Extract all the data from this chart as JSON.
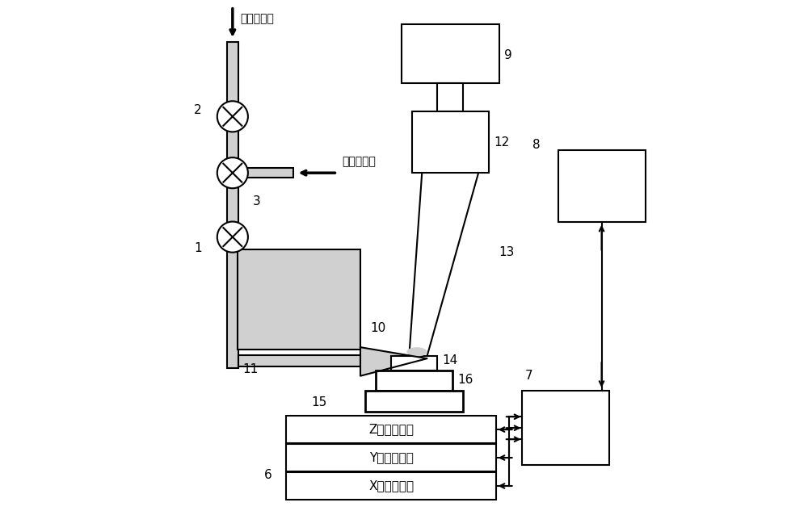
{
  "bg_color": "#ffffff",
  "line_color": "#000000",
  "fill_light": "#d0d0d0",
  "text_Z": "Z电控平移台",
  "text_Y": "Y电控平移台",
  "text_X": "X电控平移台",
  "text_buffer": "缓冲气入口",
  "text_react": "反应气入口"
}
